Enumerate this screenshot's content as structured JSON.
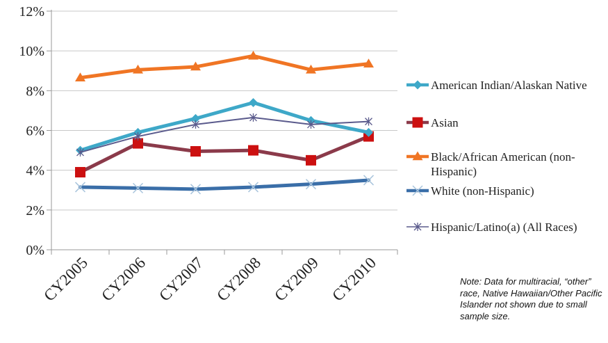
{
  "chart_data": {
    "type": "line",
    "categories": [
      "CY2005",
      "CY2006",
      "CY2007",
      "CY2008",
      "CY2009",
      "CY2010"
    ],
    "ylim": [
      0,
      12
    ],
    "yticks": [
      "0%",
      "2%",
      "4%",
      "6%",
      "8%",
      "10%",
      "12%"
    ],
    "grid": "horizontal",
    "legend_position": "right",
    "series": [
      {
        "name": "American Indian/Alaskan Native",
        "values": [
          5.0,
          5.9,
          6.6,
          7.4,
          6.5,
          5.9
        ],
        "color": "#3ea8c8",
        "marker": "diamond"
      },
      {
        "name": "Asian",
        "values": [
          3.9,
          5.35,
          4.95,
          5.0,
          4.5,
          5.7
        ],
        "color": "#8b3a4a",
        "marker_color": "#cc1010",
        "marker": "square"
      },
      {
        "name": "Black/African American (non-Hispanic)",
        "values": [
          8.65,
          9.05,
          9.2,
          9.75,
          9.05,
          9.35
        ],
        "color": "#f07524",
        "marker": "triangle"
      },
      {
        "name": "White (non-Hispanic)",
        "values": [
          3.15,
          3.1,
          3.05,
          3.15,
          3.3,
          3.5
        ],
        "color": "#3a6ea8",
        "marker": "x"
      },
      {
        "name": "Hispanic/Latino(a) (All Races)",
        "values": [
          4.9,
          5.7,
          6.3,
          6.65,
          6.3,
          6.45
        ],
        "color": "#5a5a8c",
        "marker": "star"
      }
    ]
  },
  "note": "Note: Data for multiracial, “other” race, Native Hawaiian/Other Pacific Islander not shown due to small sample size."
}
